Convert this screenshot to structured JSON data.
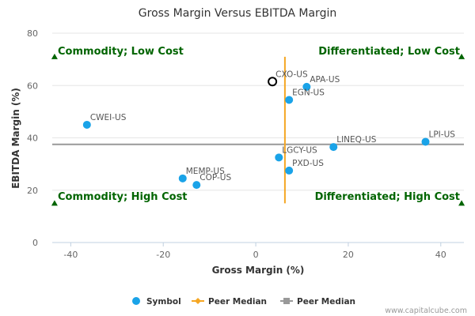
{
  "chart_data": {
    "type": "scatter",
    "title": "Gross Margin Versus EBITDA Margin",
    "xlabel": "Gross Margin (%)",
    "ylabel": "EBITDA Margin (%)",
    "xlim": [
      -44,
      45
    ],
    "ylim": [
      0,
      80
    ],
    "x_ticks": [
      -40,
      -20,
      0,
      20,
      40
    ],
    "y_ticks": [
      0,
      20,
      40,
      60,
      80
    ],
    "points": [
      {
        "label": "CXO-US",
        "x": 3.6,
        "y": 61.5,
        "highlight": true
      },
      {
        "label": "APA-US",
        "x": 11.0,
        "y": 59.5
      },
      {
        "label": "EGN-US",
        "x": 7.2,
        "y": 54.5
      },
      {
        "label": "CWEI-US",
        "x": -36.5,
        "y": 45.0
      },
      {
        "label": "LPI-US",
        "x": 36.7,
        "y": 38.5
      },
      {
        "label": "LINEQ-US",
        "x": 16.8,
        "y": 36.5
      },
      {
        "label": "LGCY-US",
        "x": 5.0,
        "y": 32.5
      },
      {
        "label": "PXD-US",
        "x": 7.2,
        "y": 27.5
      },
      {
        "label": "MEMP-US",
        "x": -15.8,
        "y": 24.5
      },
      {
        "label": "COP-US",
        "x": -12.8,
        "y": 22.0
      }
    ],
    "peer_median_x": 6.3,
    "peer_median_y": 37.5,
    "quadrants": {
      "top_left": "Commodity; Low Cost",
      "top_right": "Differentiated; Low Cost",
      "bottom_left": "Commodity; High Cost",
      "bottom_right": "Differentiated; High Cost"
    },
    "legend": [
      "Symbol",
      "Peer Median",
      "Peer Median"
    ],
    "colors": {
      "point": "#1aa3e8",
      "median_x": "#f5a623",
      "median_y": "#999999",
      "quadrant_text": "#006400",
      "highlight_stroke": "#000000"
    }
  },
  "credit": "www.capitalcube.com"
}
